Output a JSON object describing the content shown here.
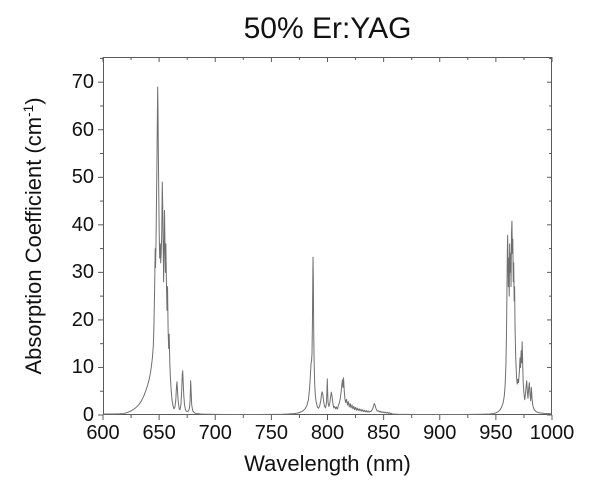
{
  "chart_data": {
    "type": "line",
    "title": "50% Er:YAG",
    "xlabel": "Wavelength (nm)",
    "ylabel": "Absorption Coefficient (cm^-1)",
    "ylabel_parts": {
      "base": "Absorption Coefficient (cm",
      "sup": "-1",
      "end": ")"
    },
    "xlim": [
      600,
      1000
    ],
    "ylim": [
      0,
      75.3
    ],
    "x_major_ticks": [
      600,
      650,
      700,
      750,
      800,
      850,
      900,
      950,
      1000
    ],
    "x_tick_labels": [
      "600",
      "650",
      "700",
      "750",
      "800",
      "850",
      "900",
      "950",
      "1000"
    ],
    "x_minor_ticks": [
      625,
      675,
      725,
      775,
      825,
      875,
      925,
      975
    ],
    "y_major_ticks": [
      0,
      10,
      20,
      30,
      40,
      50,
      60,
      70
    ],
    "y_tick_labels": [
      "0",
      "10",
      "20",
      "30",
      "40",
      "50",
      "60",
      "70"
    ],
    "y_minor_ticks": [
      5,
      15,
      25,
      35,
      45,
      55,
      65,
      75
    ],
    "grid": false,
    "legend": null,
    "tick_style": {
      "bottom_left": "out",
      "top_right": "in",
      "major_len": 5,
      "minor_len": 3
    },
    "colors": {
      "line": "#6f6f6f",
      "axis": "#5a5a5a",
      "text": "#000000",
      "background": "#ffffff"
    },
    "series": [
      {
        "name": "50% Er:YAG absorption",
        "points": [
          [
            600,
            0.2
          ],
          [
            605,
            0.2
          ],
          [
            610,
            0.2
          ],
          [
            615,
            0.25
          ],
          [
            618,
            0.3
          ],
          [
            620,
            0.4
          ],
          [
            622,
            0.55
          ],
          [
            624,
            0.75
          ],
          [
            626,
            1.0
          ],
          [
            628,
            1.3
          ],
          [
            630,
            1.7
          ],
          [
            632,
            2.2
          ],
          [
            634,
            2.9
          ],
          [
            636,
            3.8
          ],
          [
            638,
            5.0
          ],
          [
            640,
            6.5
          ],
          [
            641,
            7.4
          ],
          [
            642,
            8.5
          ],
          [
            643,
            10
          ],
          [
            644,
            12
          ],
          [
            644.8,
            14.5
          ],
          [
            645.3,
            18
          ],
          [
            645.8,
            24
          ],
          [
            646.2,
            30
          ],
          [
            646.5,
            35
          ],
          [
            646.8,
            31
          ],
          [
            647.2,
            36
          ],
          [
            647.6,
            44
          ],
          [
            648.0,
            52
          ],
          [
            648.4,
            62
          ],
          [
            648.7,
            69
          ],
          [
            649.0,
            64
          ],
          [
            649.3,
            55
          ],
          [
            649.7,
            46
          ],
          [
            650.1,
            38
          ],
          [
            650.5,
            33
          ],
          [
            651.0,
            36
          ],
          [
            651.4,
            32
          ],
          [
            651.8,
            34
          ],
          [
            652.3,
            38
          ],
          [
            652.8,
            49
          ],
          [
            653.2,
            44
          ],
          [
            653.6,
            36
          ],
          [
            654.0,
            28
          ],
          [
            654.4,
            35
          ],
          [
            654.8,
            43
          ],
          [
            655.2,
            36
          ],
          [
            655.6,
            30
          ],
          [
            656.0,
            36
          ],
          [
            656.5,
            28
          ],
          [
            657.0,
            22
          ],
          [
            657.5,
            27
          ],
          [
            658.0,
            18
          ],
          [
            658.5,
            14
          ],
          [
            659.0,
            17
          ],
          [
            659.5,
            11
          ],
          [
            660.0,
            8
          ],
          [
            660.8,
            5
          ],
          [
            661.5,
            3.2
          ],
          [
            662.3,
            2.0
          ],
          [
            663.2,
            1.3
          ],
          [
            664.0,
            1.6
          ],
          [
            664.8,
            3.0
          ],
          [
            665.5,
            6.0
          ],
          [
            665.9,
            7.0
          ],
          [
            666.3,
            5.5
          ],
          [
            667.0,
            2.8
          ],
          [
            667.8,
            1.4
          ],
          [
            668.6,
            1.1
          ],
          [
            669.4,
            2.2
          ],
          [
            670.1,
            5.0
          ],
          [
            670.6,
            8.5
          ],
          [
            671.0,
            9.3
          ],
          [
            671.4,
            7.0
          ],
          [
            672.0,
            4.0
          ],
          [
            672.6,
            2.2
          ],
          [
            673.4,
            1.2
          ],
          [
            674.2,
            0.8
          ],
          [
            675.2,
            0.7
          ],
          [
            676.2,
            0.9
          ],
          [
            677.0,
            1.4
          ],
          [
            677.6,
            3.0
          ],
          [
            678.1,
            7.2
          ],
          [
            678.5,
            5.0
          ],
          [
            679.0,
            2.2
          ],
          [
            679.8,
            1.0
          ],
          [
            680.8,
            0.6
          ],
          [
            682,
            0.4
          ],
          [
            684,
            0.3
          ],
          [
            687,
            0.22
          ],
          [
            690,
            0.18
          ],
          [
            695,
            0.15
          ],
          [
            700,
            0.12
          ],
          [
            710,
            0.1
          ],
          [
            720,
            0.1
          ],
          [
            730,
            0.1
          ],
          [
            740,
            0.1
          ],
          [
            750,
            0.12
          ],
          [
            760,
            0.15
          ],
          [
            765,
            0.2
          ],
          [
            770,
            0.3
          ],
          [
            773,
            0.4
          ],
          [
            776,
            0.6
          ],
          [
            778,
            0.85
          ],
          [
            780,
            1.3
          ],
          [
            781.5,
            1.9
          ],
          [
            783,
            3.2
          ],
          [
            784,
            5.5
          ],
          [
            784.8,
            8.5
          ],
          [
            785.3,
            10.8
          ],
          [
            785.8,
            11.3
          ],
          [
            786.2,
            13
          ],
          [
            786.6,
            20
          ],
          [
            786.9,
            29
          ],
          [
            787.1,
            33.2
          ],
          [
            787.4,
            28
          ],
          [
            787.7,
            18
          ],
          [
            788.1,
            11
          ],
          [
            788.6,
            6.5
          ],
          [
            789.2,
            4.0
          ],
          [
            790,
            2.6
          ],
          [
            791,
            1.7
          ],
          [
            792,
            1.4
          ],
          [
            793,
            1.9
          ],
          [
            794,
            3.0
          ],
          [
            794.7,
            4.4
          ],
          [
            795.2,
            4.9
          ],
          [
            795.8,
            4.3
          ],
          [
            796.5,
            3.0
          ],
          [
            797.3,
            1.9
          ],
          [
            798.2,
            1.5
          ],
          [
            799.0,
            2.4
          ],
          [
            799.5,
            5.0
          ],
          [
            799.8,
            7.6
          ],
          [
            800.1,
            5.0
          ],
          [
            800.5,
            2.6
          ],
          [
            801.2,
            1.8
          ],
          [
            802.0,
            2.4
          ],
          [
            802.8,
            3.8
          ],
          [
            803.4,
            4.8
          ],
          [
            804.0,
            4.0
          ],
          [
            804.8,
            2.4
          ],
          [
            805.6,
            1.5
          ],
          [
            806.4,
            1.8
          ],
          [
            807.2,
            1.3
          ],
          [
            808.0,
            1.7
          ],
          [
            808.8,
            1.2
          ],
          [
            809.6,
            1.9
          ],
          [
            810.4,
            2.5
          ],
          [
            811.2,
            3.2
          ],
          [
            812.0,
            4.6
          ],
          [
            812.7,
            6.2
          ],
          [
            813.3,
            7.4
          ],
          [
            813.8,
            5.8
          ],
          [
            814.3,
            7.8
          ],
          [
            814.9,
            5.2
          ],
          [
            815.5,
            3.4
          ],
          [
            816.2,
            2.6
          ],
          [
            817.0,
            3.3
          ],
          [
            817.8,
            2.1
          ],
          [
            818.6,
            2.8
          ],
          [
            819.4,
            1.7
          ],
          [
            820.2,
            2.4
          ],
          [
            821.0,
            1.5
          ],
          [
            821.8,
            2.1
          ],
          [
            822.6,
            1.3
          ],
          [
            823.4,
            1.8
          ],
          [
            824.2,
            1.1
          ],
          [
            825.0,
            1.6
          ],
          [
            825.8,
            1.0
          ],
          [
            826.6,
            1.45
          ],
          [
            827.4,
            0.95
          ],
          [
            828.2,
            1.3
          ],
          [
            829.0,
            0.85
          ],
          [
            829.8,
            1.2
          ],
          [
            830.6,
            0.8
          ],
          [
            831.4,
            1.1
          ],
          [
            832.2,
            0.7
          ],
          [
            833.0,
            1.0
          ],
          [
            833.8,
            0.65
          ],
          [
            834.6,
            0.95
          ],
          [
            835.4,
            0.6
          ],
          [
            836.2,
            0.85
          ],
          [
            837.0,
            0.6
          ],
          [
            837.8,
            0.8
          ],
          [
            838.6,
            0.7
          ],
          [
            839.4,
            0.95
          ],
          [
            840.2,
            1.3
          ],
          [
            841.0,
            1.9
          ],
          [
            841.6,
            2.4
          ],
          [
            842.2,
            2.2
          ],
          [
            843.0,
            1.5
          ],
          [
            843.8,
            1.0
          ],
          [
            844.6,
            0.8
          ],
          [
            845.4,
            0.9
          ],
          [
            846.2,
            0.65
          ],
          [
            847.0,
            0.8
          ],
          [
            847.8,
            0.55
          ],
          [
            848.6,
            0.7
          ],
          [
            849.4,
            0.5
          ],
          [
            850.2,
            0.65
          ],
          [
            851.0,
            0.45
          ],
          [
            851.8,
            0.6
          ],
          [
            852.6,
            0.4
          ],
          [
            853.4,
            0.55
          ],
          [
            854.2,
            0.35
          ],
          [
            855.0,
            0.5
          ],
          [
            855.8,
            0.3
          ],
          [
            856.6,
            0.4
          ],
          [
            857.4,
            0.25
          ],
          [
            858.5,
            0.2
          ],
          [
            860,
            0.18
          ],
          [
            863,
            0.15
          ],
          [
            867,
            0.13
          ],
          [
            872,
            0.12
          ],
          [
            880,
            0.1
          ],
          [
            890,
            0.1
          ],
          [
            900,
            0.1
          ],
          [
            910,
            0.1
          ],
          [
            920,
            0.1
          ],
          [
            930,
            0.12
          ],
          [
            938,
            0.15
          ],
          [
            944,
            0.2
          ],
          [
            948,
            0.3
          ],
          [
            950,
            0.45
          ],
          [
            952,
            0.7
          ],
          [
            953.5,
            1.0
          ],
          [
            955,
            1.6
          ],
          [
            956.5,
            2.6
          ],
          [
            957.5,
            4.0
          ],
          [
            958.3,
            6.5
          ],
          [
            959.0,
            11
          ],
          [
            959.5,
            18
          ],
          [
            959.9,
            27
          ],
          [
            960.2,
            34
          ],
          [
            960.5,
            37.8
          ],
          [
            960.8,
            33
          ],
          [
            961.1,
            27
          ],
          [
            961.5,
            33
          ],
          [
            961.9,
            25
          ],
          [
            962.3,
            36
          ],
          [
            962.7,
            30
          ],
          [
            963.1,
            34
          ],
          [
            963.5,
            27
          ],
          [
            963.9,
            38
          ],
          [
            964.3,
            40.8
          ],
          [
            964.7,
            34
          ],
          [
            965.1,
            37
          ],
          [
            965.5,
            28
          ],
          [
            965.9,
            32
          ],
          [
            966.3,
            24
          ],
          [
            966.7,
            27
          ],
          [
            967.1,
            18
          ],
          [
            967.7,
            12
          ],
          [
            968.4,
            8
          ],
          [
            969.0,
            6.5
          ],
          [
            969.6,
            7.5
          ],
          [
            970.2,
            6.8
          ],
          [
            970.9,
            9
          ],
          [
            971.5,
            12
          ],
          [
            972.0,
            10
          ],
          [
            972.5,
            13.5
          ],
          [
            973.0,
            11
          ],
          [
            973.4,
            15.4
          ],
          [
            973.8,
            12
          ],
          [
            974.3,
            7
          ],
          [
            975.0,
            4.5
          ],
          [
            975.7,
            3.2
          ],
          [
            976.4,
            4.5
          ],
          [
            977.0,
            6.2
          ],
          [
            977.5,
            7.2
          ],
          [
            978.0,
            5
          ],
          [
            978.6,
            3.5
          ],
          [
            979.2,
            5.5
          ],
          [
            979.8,
            6.8
          ],
          [
            980.4,
            4.5
          ],
          [
            981.0,
            3
          ],
          [
            981.6,
            5.8
          ],
          [
            982.2,
            3.5
          ],
          [
            982.8,
            2.2
          ],
          [
            983.5,
            1.5
          ],
          [
            984.5,
            1.0
          ],
          [
            986,
            0.7
          ],
          [
            988,
            0.5
          ],
          [
            990,
            0.42
          ],
          [
            993,
            0.35
          ],
          [
            996,
            0.3
          ],
          [
            1000,
            0.28
          ]
        ]
      }
    ]
  }
}
